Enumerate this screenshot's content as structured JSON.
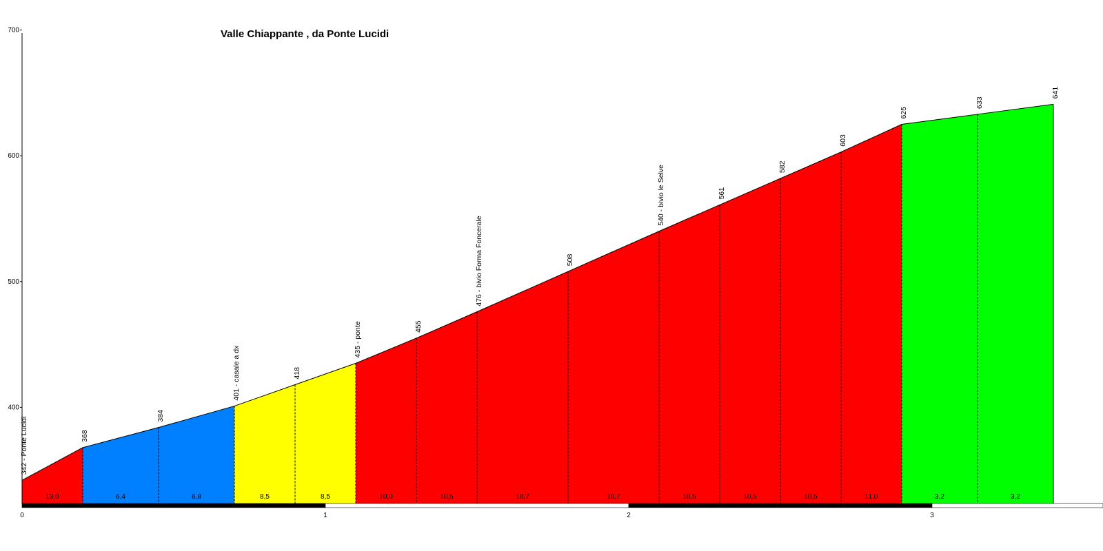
{
  "chart_data": {
    "type": "area",
    "title": "Valle Chiappante , da Ponte Lucidi",
    "xlabel": "",
    "ylabel": "",
    "xlim": [
      0,
      3.57
    ],
    "ylim": [
      323,
      700
    ],
    "x_ticks": [
      "0",
      "1",
      "2",
      "3"
    ],
    "y_ticks": [
      "400",
      "500",
      "600",
      "700"
    ],
    "grid": false,
    "points": [
      {
        "x": 0.0,
        "y": 342,
        "label": "342 - Ponte Lucidi"
      },
      {
        "x": 0.2,
        "y": 368,
        "label": "368"
      },
      {
        "x": 0.45,
        "y": 384,
        "label": "384"
      },
      {
        "x": 0.7,
        "y": 401,
        "label": "401 - casale a dx"
      },
      {
        "x": 0.9,
        "y": 418,
        "label": "418"
      },
      {
        "x": 1.1,
        "y": 435,
        "label": "435 - ponte"
      },
      {
        "x": 1.3,
        "y": 455,
        "label": "455"
      },
      {
        "x": 1.5,
        "y": 476,
        "label": "476 - bivio Forma Foncerale"
      },
      {
        "x": 1.8,
        "y": 508,
        "label": "508"
      },
      {
        "x": 2.1,
        "y": 540,
        "label": "540 - bivio le Selve"
      },
      {
        "x": 2.3,
        "y": 561,
        "label": "561"
      },
      {
        "x": 2.5,
        "y": 582,
        "label": "582"
      },
      {
        "x": 2.7,
        "y": 603,
        "label": "603"
      },
      {
        "x": 2.9,
        "y": 625,
        "label": "625"
      },
      {
        "x": 3.15,
        "y": 633,
        "label": "633"
      },
      {
        "x": 3.4,
        "y": 641,
        "label": "641"
      }
    ],
    "segments": [
      {
        "grade": "13,0",
        "color": "#ff0000"
      },
      {
        "grade": "6,4",
        "color": "#0080ff"
      },
      {
        "grade": "6,8",
        "color": "#0080ff"
      },
      {
        "grade": "8,5",
        "color": "#ffff00"
      },
      {
        "grade": "8,5",
        "color": "#ffff00"
      },
      {
        "grade": "10,0",
        "color": "#ff0000"
      },
      {
        "grade": "10,5",
        "color": "#ff0000"
      },
      {
        "grade": "10,7",
        "color": "#ff0000"
      },
      {
        "grade": "10,7",
        "color": "#ff0000"
      },
      {
        "grade": "10,5",
        "color": "#ff0000"
      },
      {
        "grade": "10,5",
        "color": "#ff0000"
      },
      {
        "grade": "10,5",
        "color": "#ff0000"
      },
      {
        "grade": "11,0",
        "color": "#ff0000"
      },
      {
        "grade": "3,2",
        "color": "#00ff00"
      },
      {
        "grade": "3,2",
        "color": "#00ff00"
      }
    ]
  }
}
